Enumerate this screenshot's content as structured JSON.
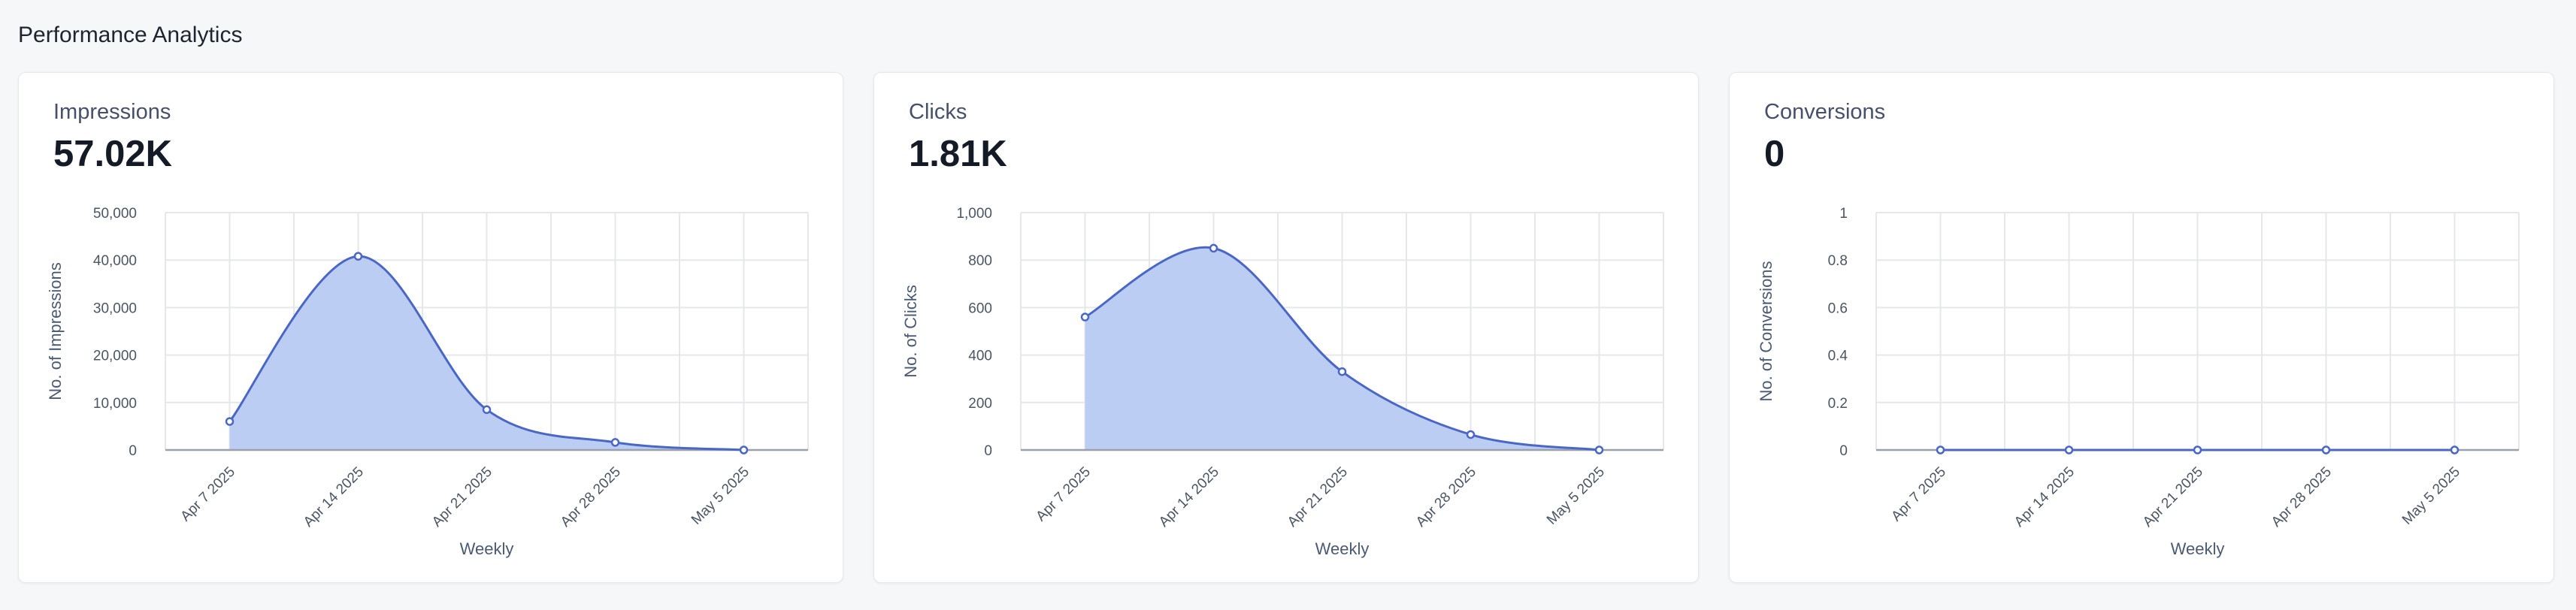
{
  "page": {
    "title": "Performance Analytics"
  },
  "theme": {
    "line_color": "#4a67c6",
    "area_color": "#bccdf3",
    "grid_color": "#e5e7eb"
  },
  "cards": [
    {
      "label": "Impressions",
      "value": "57.02K"
    },
    {
      "label": "Clicks",
      "value": "1.81K"
    },
    {
      "label": "Conversions",
      "value": "0"
    }
  ],
  "chart_data": [
    {
      "type": "area",
      "xlabel": "Weekly",
      "ylabel": "No. of Impressions",
      "categories": [
        "Apr 7 2025",
        "Apr 14 2025",
        "Apr 21 2025",
        "Apr 28 2025",
        "May 5 2025"
      ],
      "values": [
        6000,
        40800,
        8500,
        1600,
        0
      ],
      "ylim": [
        0,
        50000
      ],
      "yticks": [
        0,
        10000,
        20000,
        30000,
        40000,
        50000
      ],
      "ytick_labels": [
        "0",
        "10,000",
        "20,000",
        "30,000",
        "40,000",
        "50,000"
      ],
      "grid": true
    },
    {
      "type": "area",
      "xlabel": "Weekly",
      "ylabel": "No. of Clicks",
      "categories": [
        "Apr 7 2025",
        "Apr 14 2025",
        "Apr 21 2025",
        "Apr 28 2025",
        "May 5 2025"
      ],
      "values": [
        560,
        850,
        330,
        65,
        0
      ],
      "ylim": [
        0,
        1000
      ],
      "yticks": [
        0,
        200,
        400,
        600,
        800,
        1000
      ],
      "ytick_labels": [
        "0",
        "200",
        "400",
        "600",
        "800",
        "1,000"
      ],
      "grid": true
    },
    {
      "type": "area",
      "xlabel": "Weekly",
      "ylabel": "No. of Conversions",
      "categories": [
        "Apr 7 2025",
        "Apr 14 2025",
        "Apr 21 2025",
        "Apr 28 2025",
        "May 5 2025"
      ],
      "values": [
        0,
        0,
        0,
        0,
        0
      ],
      "ylim": [
        0,
        1
      ],
      "yticks": [
        0,
        0.2,
        0.4,
        0.6,
        0.8,
        1
      ],
      "ytick_labels": [
        "0",
        "0.2",
        "0.4",
        "0.6",
        "0.8",
        "1"
      ],
      "grid": true
    }
  ]
}
